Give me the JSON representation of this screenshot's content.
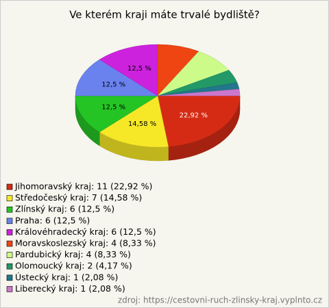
{
  "chart_data": {
    "type": "pie",
    "title": "Ve kterém kraji máte trvalé bydliště?",
    "categories": [
      "Jihomoravský kraj: 11 (22,92 %)",
      "Středočeský kraj: 7 (14,58 %)",
      "Zlínský kraj: 6 (12,5 %)",
      "Praha: 6 (12,5 %)",
      "Královéhradecký kraj: 6 (12,5 %)",
      "Moravskoslezský kraj: 4 (8,33 %)",
      "Pardubický kraj: 4 (8,33 %)",
      "Olomoucký kraj: 2 (4,17 %)",
      "Ústecký kraj: 1 (2,08 %)",
      "Liberecký kraj: 1 (2,08 %)"
    ],
    "values": [
      22.92,
      14.58,
      12.5,
      12.5,
      12.5,
      8.33,
      8.33,
      4.17,
      2.08,
      2.08
    ],
    "value_labels": [
      "22,92 %",
      "14,58 %",
      "12,5 %",
      "12,5 %",
      "12,5 %",
      null,
      null,
      null,
      null,
      null
    ],
    "colors": [
      "#d52b14",
      "#f7e827",
      "#25c425",
      "#6a82ee",
      "#cc22dd",
      "#ee4513",
      "#ccfb8a",
      "#229966",
      "#22778a",
      "#cc77cc"
    ],
    "source": "zdroj: https://cestovni-ruch-zlinsky-kraj.vyplnto.cz"
  }
}
